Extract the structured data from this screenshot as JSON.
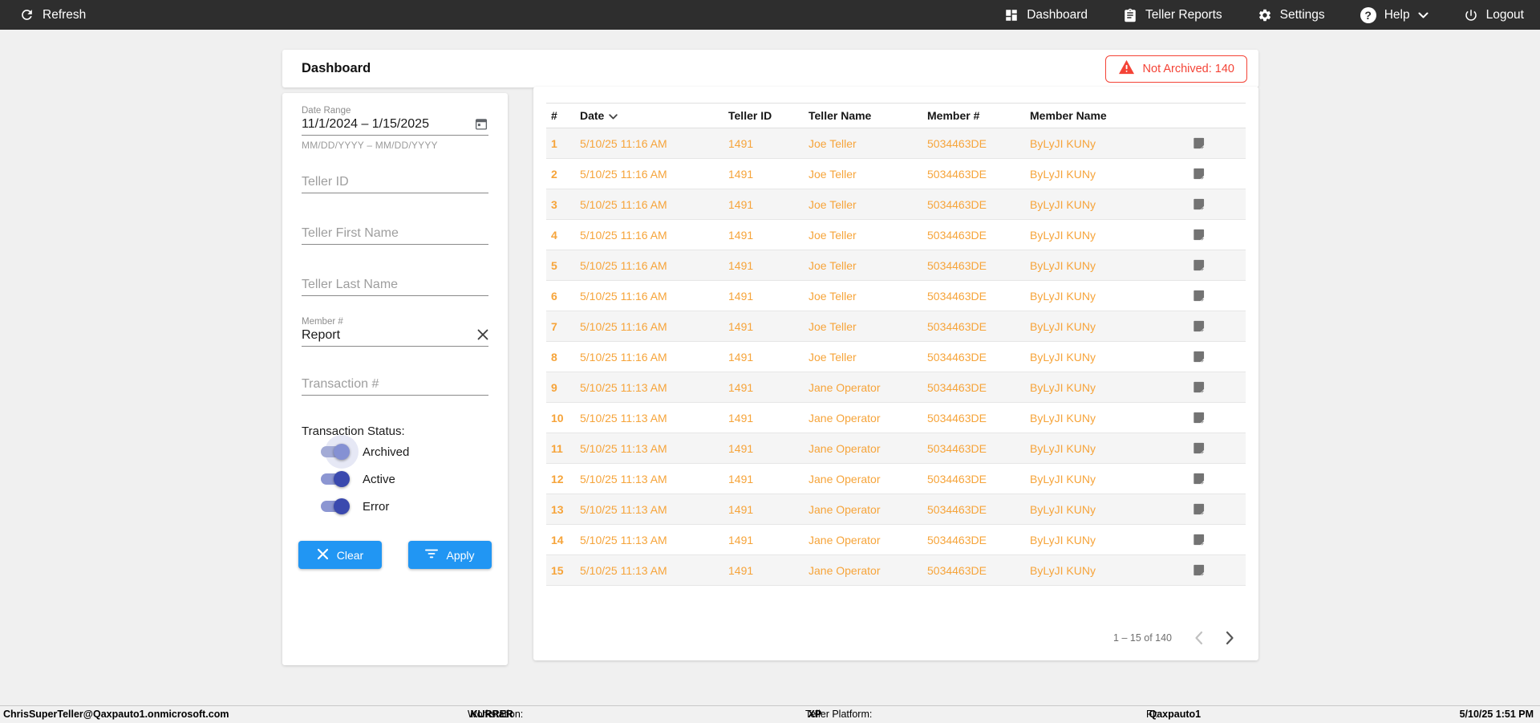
{
  "navbar": {
    "refresh_label": "Refresh",
    "items": [
      {
        "label": "Dashboard"
      },
      {
        "label": "Teller Reports"
      },
      {
        "label": "Settings"
      },
      {
        "label": "Help"
      },
      {
        "label": "Logout"
      }
    ]
  },
  "header": {
    "title": "Dashboard",
    "badge": "Not Archived: 140"
  },
  "filters": {
    "date_range": {
      "label": "Date Range",
      "value": "11/1/2024 – 1/15/2025",
      "hint": "MM/DD/YYYY – MM/DD/YYYY"
    },
    "teller_id_placeholder": "Teller ID",
    "teller_first_name_placeholder": "Teller First Name",
    "teller_last_name_placeholder": "Teller Last Name",
    "member": {
      "label": "Member #",
      "value": "Report"
    },
    "transaction_placeholder": "Transaction #",
    "status": {
      "label": "Transaction Status:",
      "toggles": [
        {
          "label": "Archived",
          "on": true,
          "style": "light"
        },
        {
          "label": "Active",
          "on": true,
          "style": "dark"
        },
        {
          "label": "Error",
          "on": true,
          "style": "dark"
        }
      ]
    },
    "clear_label": "Clear",
    "apply_label": "Apply"
  },
  "table": {
    "columns": [
      "#",
      "Date",
      "Teller ID",
      "Teller Name",
      "Member #",
      "Member Name"
    ],
    "rows": [
      {
        "num": "1",
        "date": "5/10/25 11:16 AM",
        "teller_id": "1491",
        "teller_name": "Joe Teller",
        "member_number": "5034463DE",
        "member_name": "ByLyJI KUNy"
      },
      {
        "num": "2",
        "date": "5/10/25 11:16 AM",
        "teller_id": "1491",
        "teller_name": "Joe Teller",
        "member_number": "5034463DE",
        "member_name": "ByLyJI KUNy"
      },
      {
        "num": "3",
        "date": "5/10/25 11:16 AM",
        "teller_id": "1491",
        "teller_name": "Joe Teller",
        "member_number": "5034463DE",
        "member_name": "ByLyJI KUNy"
      },
      {
        "num": "4",
        "date": "5/10/25 11:16 AM",
        "teller_id": "1491",
        "teller_name": "Joe Teller",
        "member_number": "5034463DE",
        "member_name": "ByLyJI KUNy"
      },
      {
        "num": "5",
        "date": "5/10/25 11:16 AM",
        "teller_id": "1491",
        "teller_name": "Joe Teller",
        "member_number": "5034463DE",
        "member_name": "ByLyJI KUNy"
      },
      {
        "num": "6",
        "date": "5/10/25 11:16 AM",
        "teller_id": "1491",
        "teller_name": "Joe Teller",
        "member_number": "5034463DE",
        "member_name": "ByLyJI KUNy"
      },
      {
        "num": "7",
        "date": "5/10/25 11:16 AM",
        "teller_id": "1491",
        "teller_name": "Joe Teller",
        "member_number": "5034463DE",
        "member_name": "ByLyJI KUNy"
      },
      {
        "num": "8",
        "date": "5/10/25 11:16 AM",
        "teller_id": "1491",
        "teller_name": "Joe Teller",
        "member_number": "5034463DE",
        "member_name": "ByLyJI KUNy"
      },
      {
        "num": "9",
        "date": "5/10/25 11:13 AM",
        "teller_id": "1491",
        "teller_name": "Jane Operator",
        "member_number": "5034463DE",
        "member_name": "ByLyJI KUNy"
      },
      {
        "num": "10",
        "date": "5/10/25 11:13 AM",
        "teller_id": "1491",
        "teller_name": "Jane Operator",
        "member_number": "5034463DE",
        "member_name": "ByLyJI KUNy"
      },
      {
        "num": "11",
        "date": "5/10/25 11:13 AM",
        "teller_id": "1491",
        "teller_name": "Jane Operator",
        "member_number": "5034463DE",
        "member_name": "ByLyJI KUNy"
      },
      {
        "num": "12",
        "date": "5/10/25 11:13 AM",
        "teller_id": "1491",
        "teller_name": "Jane Operator",
        "member_number": "5034463DE",
        "member_name": "ByLyJI KUNy"
      },
      {
        "num": "13",
        "date": "5/10/25 11:13 AM",
        "teller_id": "1491",
        "teller_name": "Jane Operator",
        "member_number": "5034463DE",
        "member_name": "ByLyJI KUNy"
      },
      {
        "num": "14",
        "date": "5/10/25 11:13 AM",
        "teller_id": "1491",
        "teller_name": "Jane Operator",
        "member_number": "5034463DE",
        "member_name": "ByLyJI KUNy"
      },
      {
        "num": "15",
        "date": "5/10/25 11:13 AM",
        "teller_id": "1491",
        "teller_name": "Jane Operator",
        "member_number": "5034463DE",
        "member_name": "ByLyJI KUNy"
      }
    ]
  },
  "pagination": {
    "range": "1 – 15 of 140"
  },
  "footer": {
    "user": "ChrisSuperTeller@Qaxpauto1.onmicrosoft.com",
    "workstation_label": "Workstation:",
    "workstation": "KURRER",
    "platform_label": "Teller Platform:",
    "platform": "XP",
    "fi_label": "FI:",
    "fi": "Qaxpauto1",
    "datetime": "5/10/25 1:51 PM"
  },
  "colors": {
    "navbar_bg": "#2e2e2e",
    "accent_orange": "#f6a43a",
    "alert_red": "#f44336",
    "button_blue": "#2196f3",
    "toggle_indigo": "#3a49ae",
    "toggle_indigo_light": "#8591d3"
  }
}
